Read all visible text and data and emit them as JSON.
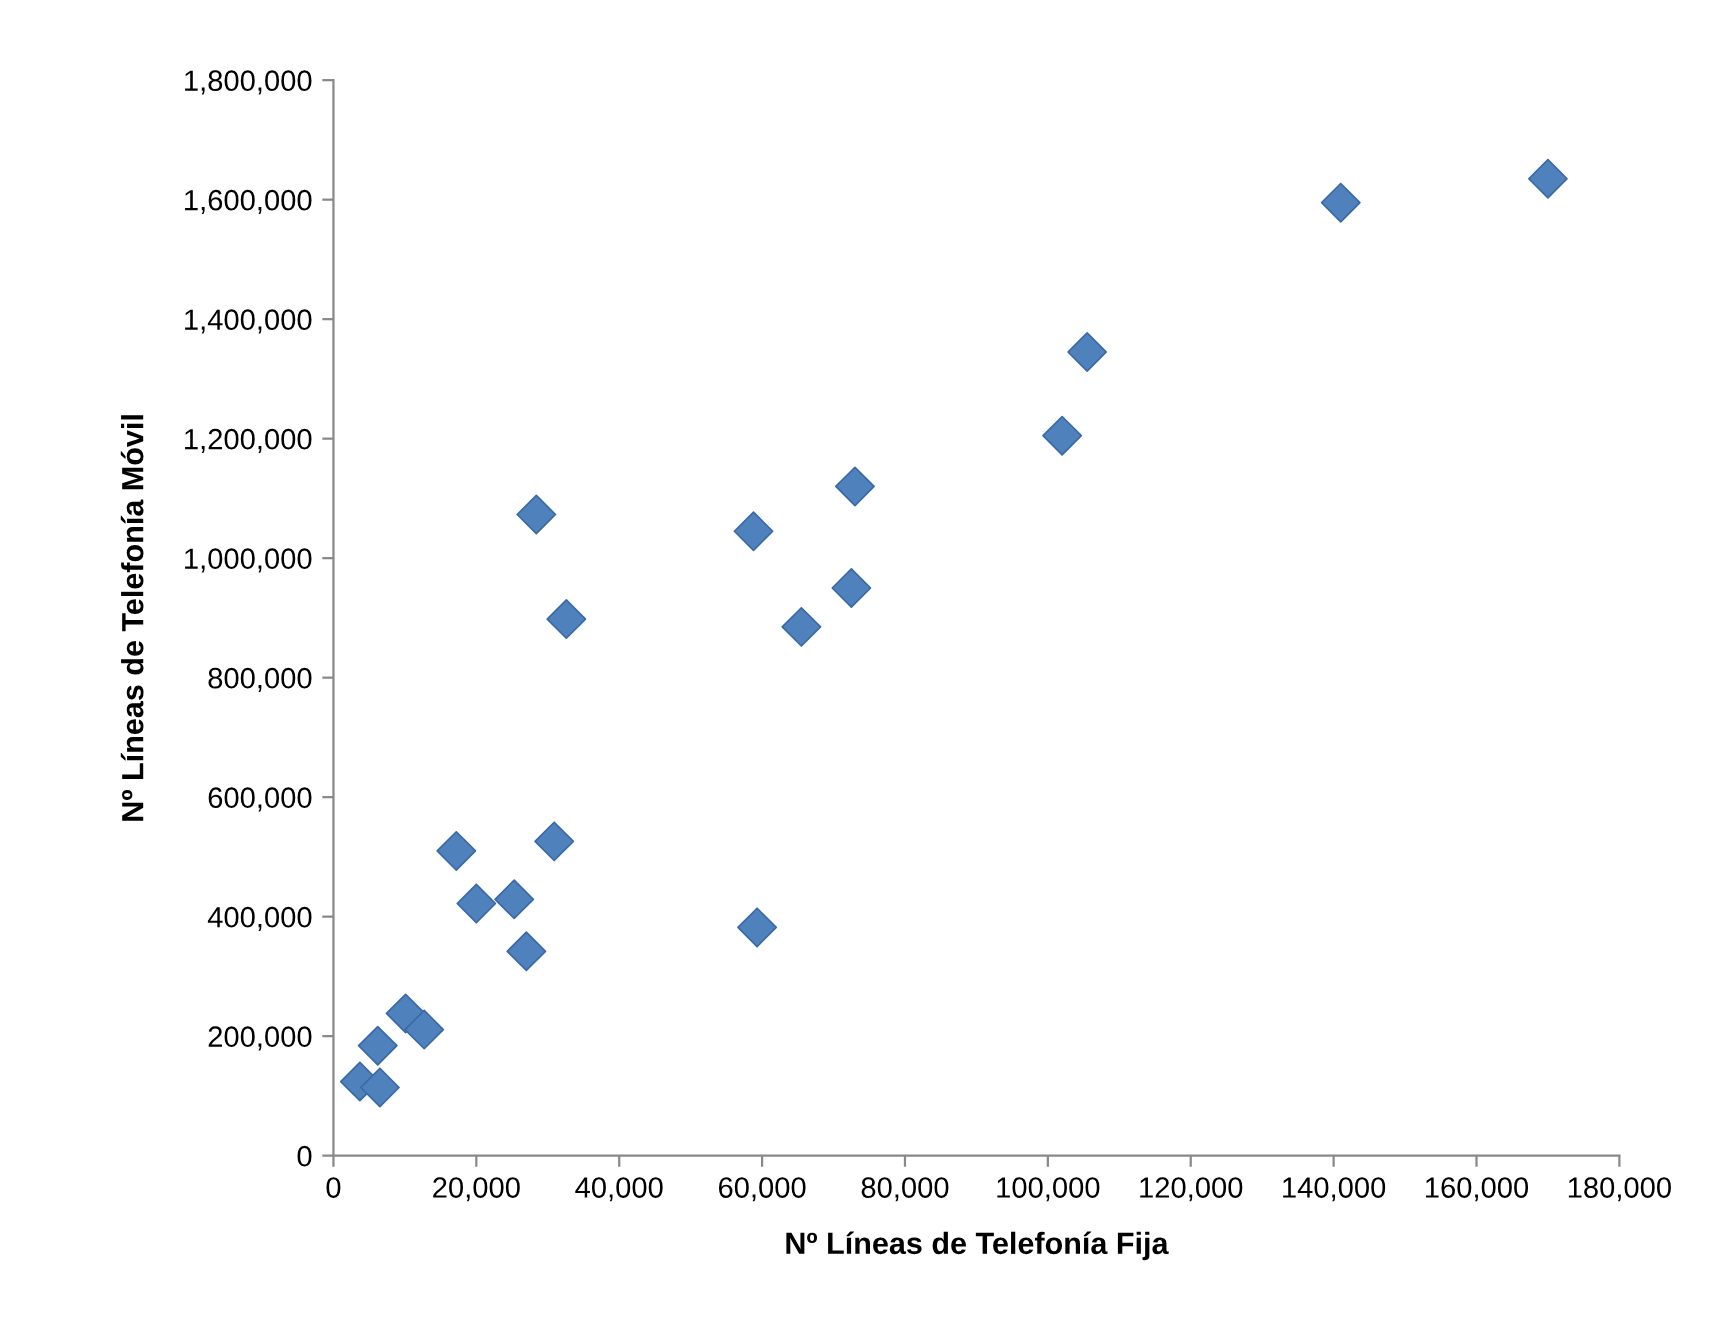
{
  "chart_data": {
    "type": "scatter",
    "xlabel": "Nº Líneas de Telefonía Fija",
    "ylabel": "Nº Líneas de Telefonía Móvil",
    "x": [
      170000,
      141000,
      105500,
      102000,
      73000,
      72500,
      58800,
      65500,
      59300,
      28400,
      32600,
      30900,
      17200,
      20000,
      25300,
      27000,
      10100,
      12700,
      6200,
      3700,
      6500
    ],
    "series": [
      {
        "color": "#4f81bd",
        "values": [
          1635000,
          1595000,
          1345000,
          1205000,
          1120000,
          950000,
          1045000,
          885000,
          382000,
          1073000,
          898000,
          526000,
          510000,
          422000,
          429000,
          342000,
          238000,
          211000,
          184000,
          124000,
          114000
        ]
      }
    ],
    "marker": "diamond",
    "grid": false,
    "legend": false,
    "xlim": [
      0,
      180000
    ],
    "xticks": [
      {
        "value": 0,
        "label": "0"
      },
      {
        "value": 20000,
        "label": "20,000"
      },
      {
        "value": 40000,
        "label": "40,000"
      },
      {
        "value": 60000,
        "label": "60,000"
      },
      {
        "value": 80000,
        "label": "80,000"
      },
      {
        "value": 100000,
        "label": "100,000"
      },
      {
        "value": 120000,
        "label": "120,000"
      },
      {
        "value": 140000,
        "label": "140,000"
      },
      {
        "value": 160000,
        "label": "160,000"
      },
      {
        "value": 180000,
        "label": "180,000"
      }
    ],
    "ylim": [
      0,
      1800000
    ],
    "yticks": [
      {
        "value": 0,
        "label": "0"
      },
      {
        "value": 200000,
        "label": "200,000"
      },
      {
        "value": 400000,
        "label": "400,000"
      },
      {
        "value": 600000,
        "label": "600,000"
      },
      {
        "value": 800000,
        "label": "800,000"
      },
      {
        "value": 1000000,
        "label": "1,000,000"
      },
      {
        "value": 1200000,
        "label": "1,200,000"
      },
      {
        "value": 1400000,
        "label": "1,400,000"
      },
      {
        "value": 1600000,
        "label": "1,600,000"
      },
      {
        "value": 1800000,
        "label": "1,800,000"
      }
    ]
  }
}
